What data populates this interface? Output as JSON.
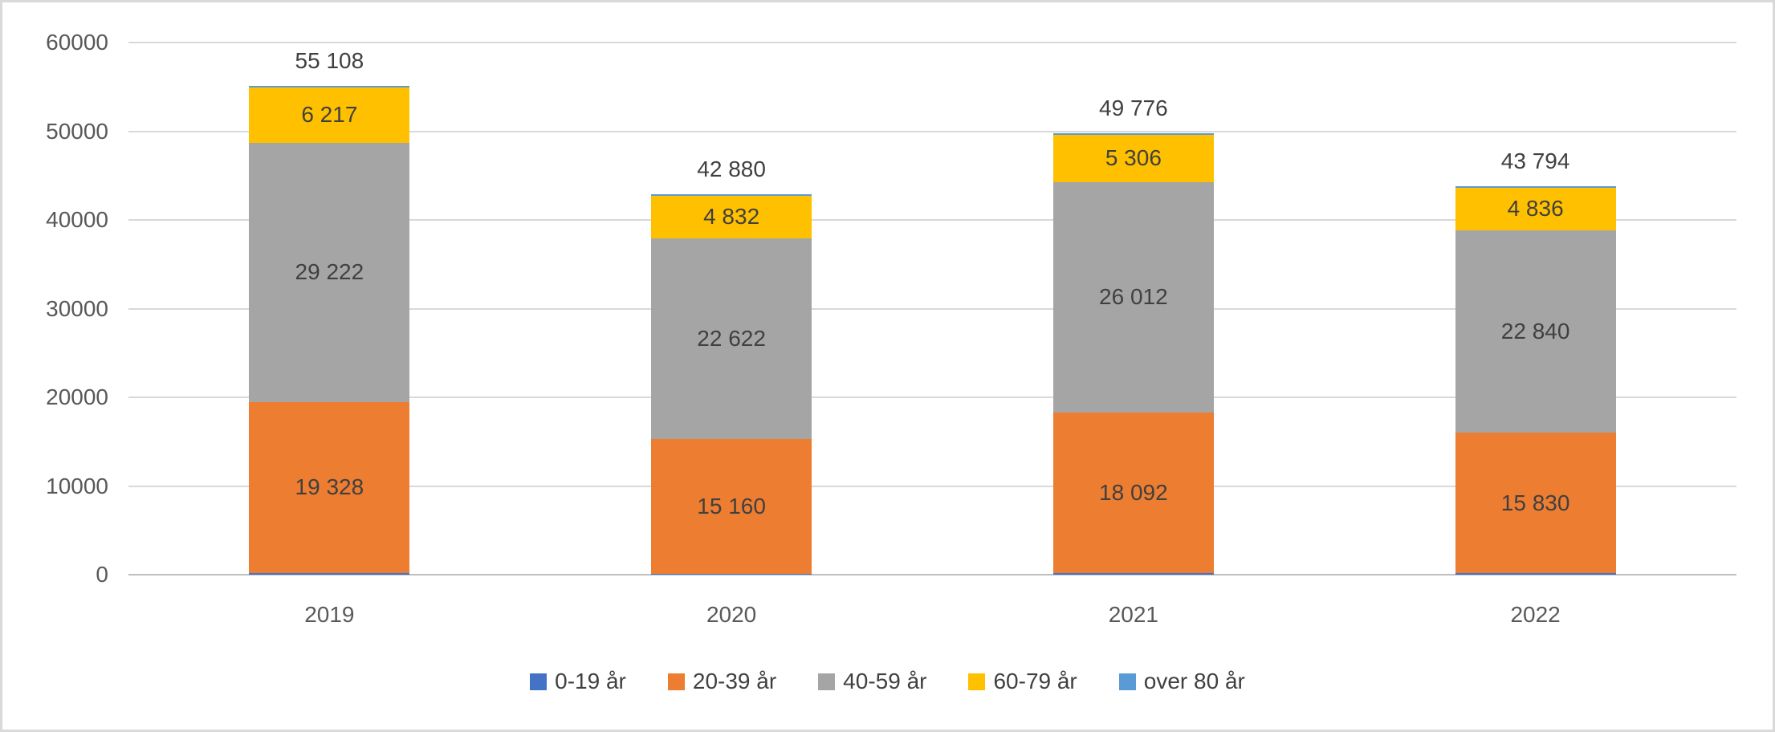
{
  "chart_style": {
    "background": "#FFFFFF",
    "border_color": "#D9D9D9",
    "grid_color": "#D9D9D9",
    "axis_line_color": "#BFBFBF",
    "tick_text_color": "#595959",
    "label_text_color": "#404040"
  },
  "chart_data": {
    "type": "bar",
    "stacked": true,
    "title": "",
    "xlabel": "",
    "ylabel": "",
    "categories": [
      "2019",
      "2020",
      "2021",
      "2022"
    ],
    "series": [
      {
        "name": "0-19 år",
        "color": "#4472C4",
        "values": [
          null,
          null,
          null,
          null
        ],
        "labels": null
      },
      {
        "name": "20-39 år",
        "color": "#ED7D31",
        "values": [
          19328,
          15160,
          18092,
          15830
        ],
        "labels": [
          "19 328",
          "15 160",
          "18 092",
          "15 830"
        ]
      },
      {
        "name": "40-59 år",
        "color": "#A5A5A5",
        "values": [
          29222,
          22622,
          26012,
          22840
        ],
        "labels": [
          "29 222",
          "22 622",
          "26 012",
          "22 840"
        ]
      },
      {
        "name": "60-79 år",
        "color": "#FFC000",
        "values": [
          6217,
          4832,
          5306,
          4836
        ],
        "labels": [
          "6 217",
          "4 832",
          "5 306",
          "4 836"
        ]
      },
      {
        "name": "over 80 år",
        "color": "#5B9BD5",
        "values": [
          null,
          null,
          null,
          null
        ],
        "labels": null
      }
    ],
    "totals": [
      55108,
      42880,
      49776,
      43794
    ],
    "total_labels": [
      "55 108",
      "42 880",
      "49 776",
      "43 794"
    ],
    "ylim": [
      0,
      60000
    ],
    "yticks": [
      0,
      10000,
      20000,
      30000,
      40000,
      50000,
      60000
    ],
    "ytick_labels": [
      "0",
      "10000",
      "20000",
      "30000",
      "40000",
      "50000",
      "60000"
    ],
    "grid": true,
    "legend_position": "bottom",
    "legend": [
      "0-19 år",
      "20-39 år",
      "40-59 år",
      "60-79 år",
      "over 80 år"
    ]
  }
}
